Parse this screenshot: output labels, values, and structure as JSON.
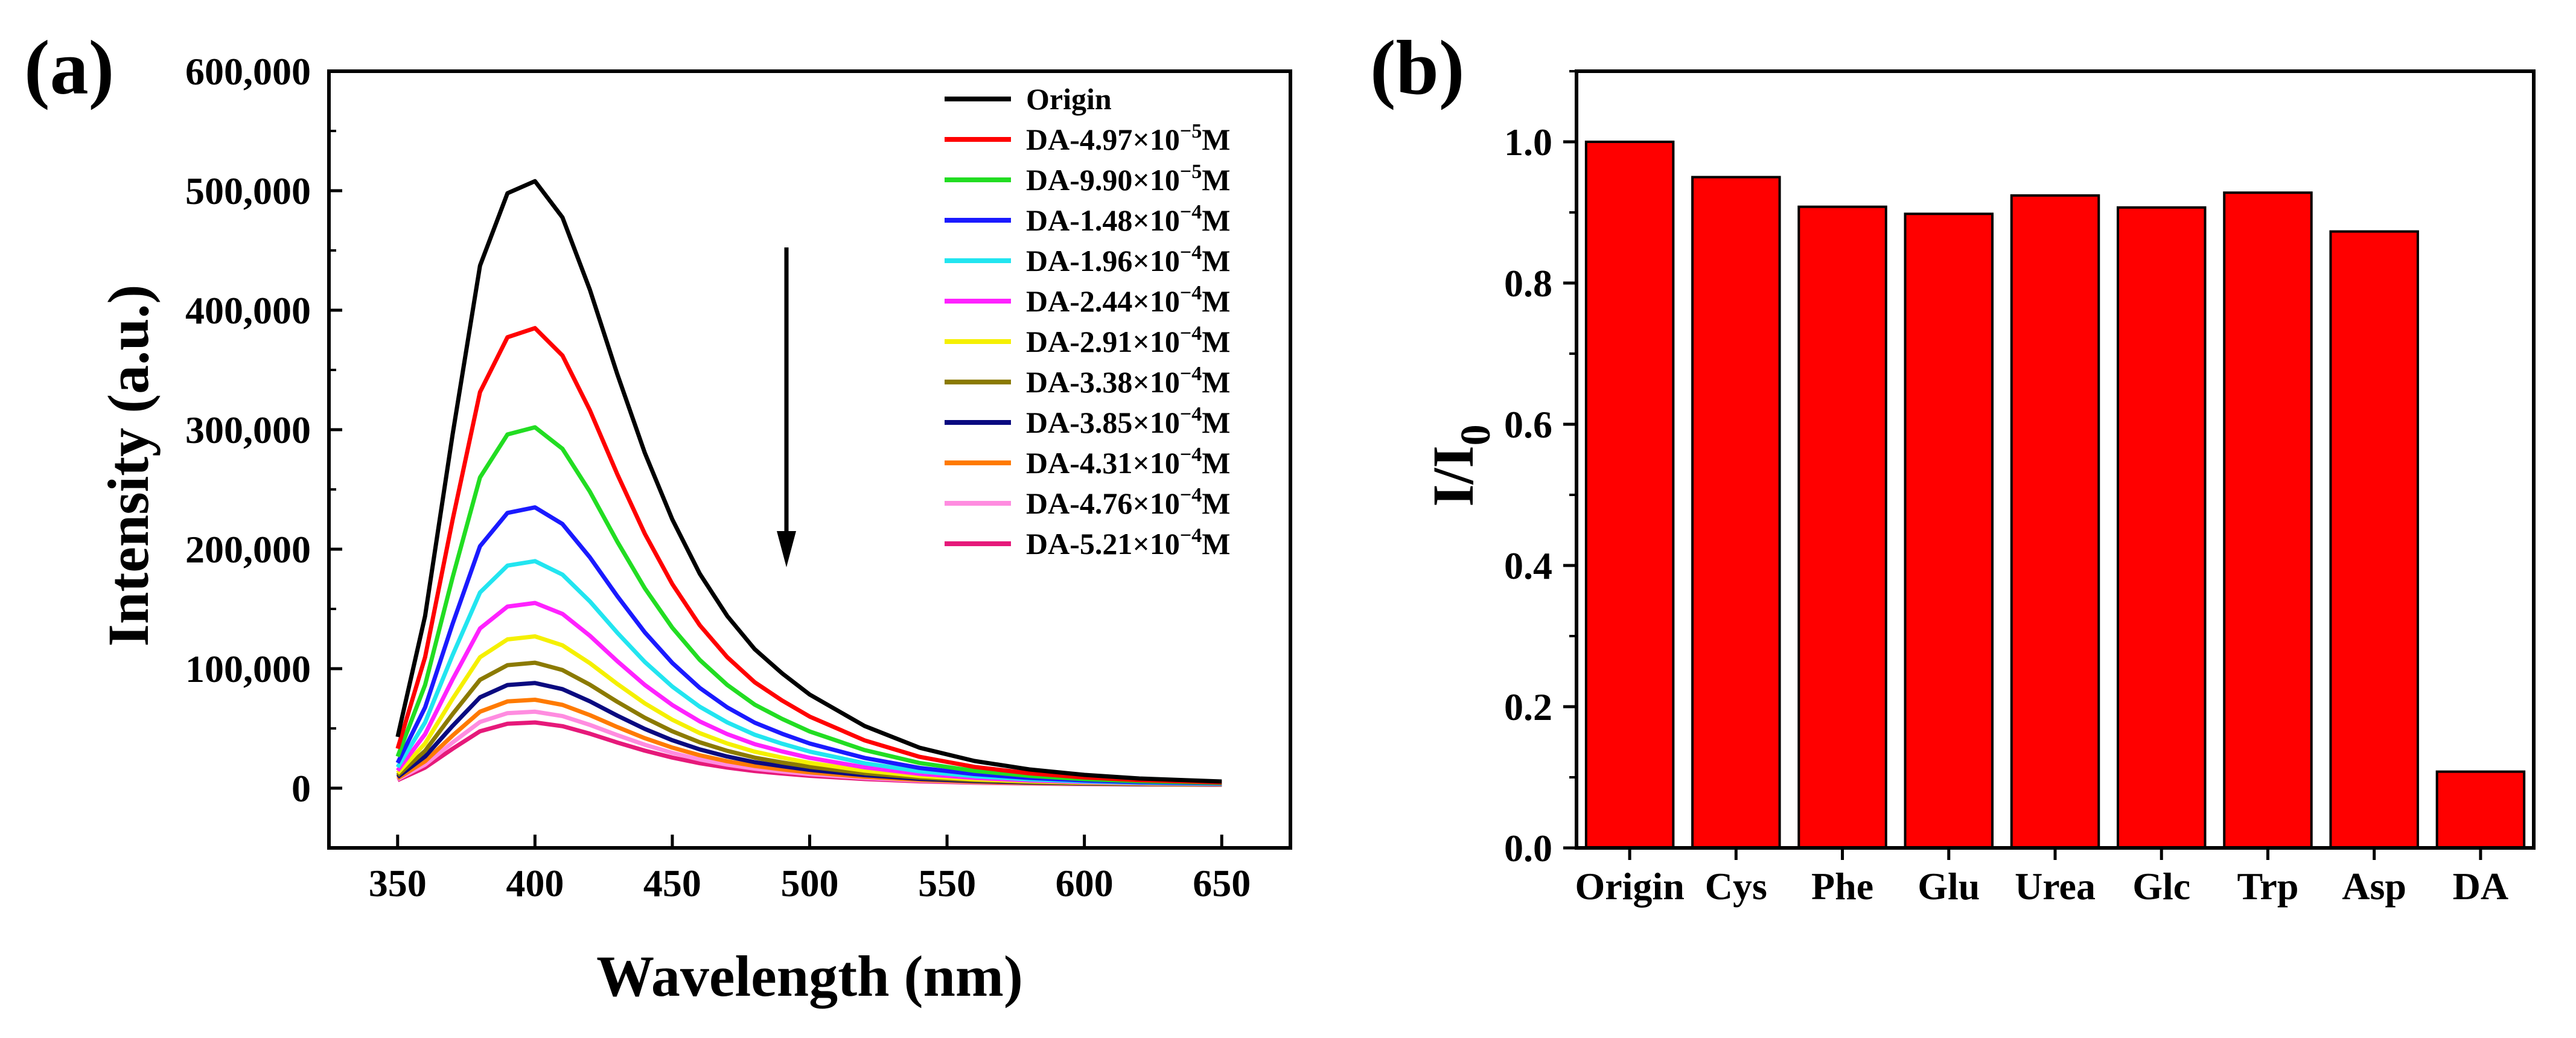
{
  "panels": {
    "a": "(a)",
    "b": "(b)"
  },
  "chart_data": [
    {
      "type": "line",
      "panel": "(a)",
      "xlabel": "Wavelength (nm)",
      "ylabel": "Intensity (a.u.)",
      "xlim": [
        325,
        675
      ],
      "ylim": [
        -50000,
        600000
      ],
      "xticks": [
        350,
        400,
        450,
        500,
        550,
        600,
        650
      ],
      "xtick_labels": [
        "350",
        "400",
        "450",
        "500",
        "550",
        "600",
        "650"
      ],
      "yticks": [
        0,
        100000,
        200000,
        300000,
        400000,
        500000,
        600000
      ],
      "ytick_labels": [
        "0",
        "100,000",
        "200,000",
        "300,000",
        "400,000",
        "500,000",
        "600,000"
      ],
      "x": [
        350,
        360,
        370,
        380,
        390,
        400,
        410,
        420,
        430,
        440,
        450,
        460,
        470,
        480,
        490,
        500,
        520,
        540,
        560,
        580,
        600,
        620,
        650
      ],
      "shape": [
        0.08,
        0.28,
        0.58,
        0.86,
        0.98,
        1.0,
        0.94,
        0.82,
        0.68,
        0.55,
        0.44,
        0.35,
        0.28,
        0.225,
        0.185,
        0.15,
        0.098,
        0.062,
        0.04,
        0.026,
        0.017,
        0.011,
        0.006
      ],
      "annotation": "downward arrow: intensity decreases with increasing DA concentration",
      "series": [
        {
          "name": "Origin",
          "label_base": "Origin",
          "label_exp": "",
          "label_unit": "",
          "peak": 508000,
          "color": "#000000"
        },
        {
          "name": "DA-4.97×10−5M",
          "label_base": "DA-4.97×10",
          "label_exp": "−5",
          "label_unit": "M",
          "peak": 385000,
          "color": "#ff0000"
        },
        {
          "name": "DA-9.90×10−5M",
          "label_base": "DA-9.90×10",
          "label_exp": "−5",
          "label_unit": "M",
          "peak": 302000,
          "color": "#22dd22"
        },
        {
          "name": "DA-1.48×10−4M",
          "label_base": "DA-1.48×10",
          "label_exp": "−4",
          "label_unit": "M",
          "peak": 235000,
          "color": "#1a1aff"
        },
        {
          "name": "DA-1.96×10−4M",
          "label_base": "DA-1.96×10",
          "label_exp": "−4",
          "label_unit": "M",
          "peak": 190000,
          "color": "#22e5f0"
        },
        {
          "name": "DA-2.44×10−4M",
          "label_base": "DA-2.44×10",
          "label_exp": "−4",
          "label_unit": "M",
          "peak": 155000,
          "color": "#ff22ff"
        },
        {
          "name": "DA-2.91×10−4M",
          "label_base": "DA-2.91×10",
          "label_exp": "−4",
          "label_unit": "M",
          "peak": 127000,
          "color": "#f5f000"
        },
        {
          "name": "DA-3.38×10−4M",
          "label_base": "DA-3.38×10",
          "label_exp": "−4",
          "label_unit": "M",
          "peak": 105000,
          "color": "#8b7a00"
        },
        {
          "name": "DA-3.85×10−4M",
          "label_base": "DA-3.85×10",
          "label_exp": "−4",
          "label_unit": "M",
          "peak": 88000,
          "color": "#0a0a80"
        },
        {
          "name": "DA-4.31×10−4M",
          "label_base": "DA-4.31×10",
          "label_exp": "−4",
          "label_unit": "M",
          "peak": 74000,
          "color": "#ff7a00"
        },
        {
          "name": "DA-4.76×10−4M",
          "label_base": "DA-4.76×10",
          "label_exp": "−4",
          "label_unit": "M",
          "peak": 64000,
          "color": "#ff8ce0"
        },
        {
          "name": "DA-5.21×10−4M",
          "label_base": "DA-5.21×10",
          "label_exp": "−4",
          "label_unit": "M",
          "peak": 55000,
          "color": "#e6197a"
        }
      ]
    },
    {
      "type": "bar",
      "panel": "(b)",
      "ylabel_main": "I/I",
      "ylabel_sub": "0",
      "xlabel": "",
      "ylim": [
        0.0,
        1.1
      ],
      "yticks": [
        0.0,
        0.2,
        0.4,
        0.6,
        0.8,
        1.0
      ],
      "ytick_labels": [
        "0.0",
        "0.2",
        "0.4",
        "0.6",
        "0.8",
        "1.0"
      ],
      "categories": [
        "Origin",
        "Cys",
        "Phe",
        "Glu",
        "Urea",
        "Glc",
        "Trp",
        "Asp",
        "DA"
      ],
      "values": [
        1.0,
        0.95,
        0.908,
        0.898,
        0.924,
        0.907,
        0.928,
        0.873,
        0.108
      ],
      "bar_color": "#ff0000"
    }
  ]
}
